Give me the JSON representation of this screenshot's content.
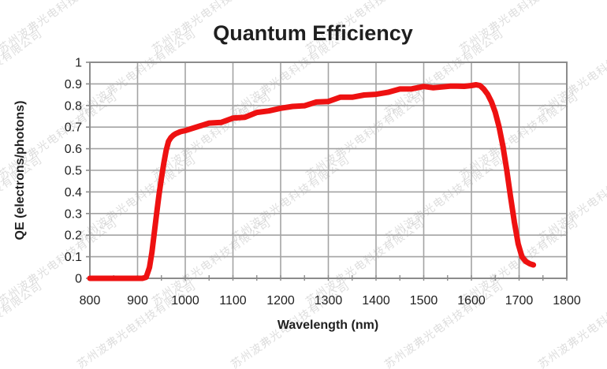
{
  "watermark": {
    "text": "苏州波弗光电科技有限公司",
    "color": "#a8a8a8"
  },
  "colors": {
    "curve": "#ee1111",
    "grid": "#a3a3a3",
    "frame": "#8c8c8c",
    "text": "#1f1f1f"
  },
  "chart_data": {
    "type": "line",
    "title": "Quantum Efficiency",
    "xlabel": "Wavelength (nm)",
    "ylabel": "QE (electrons/photons)",
    "xlim": [
      800,
      1800
    ],
    "ylim": [
      0,
      1
    ],
    "x_ticks": [
      800,
      900,
      1000,
      1100,
      1200,
      1300,
      1400,
      1500,
      1600,
      1700,
      1800
    ],
    "y_ticks": [
      "0",
      "0.1",
      "0.2",
      "0.3",
      "0.4",
      "0.5",
      "0.6",
      "0.7",
      "0.8",
      "0.9",
      "1"
    ],
    "y_tick_values": [
      0,
      0.1,
      0.2,
      0.3,
      0.4,
      0.5,
      0.6,
      0.7,
      0.8,
      0.9,
      1
    ],
    "grid": true,
    "legend": false,
    "series": [
      {
        "name": "QE",
        "points": [
          [
            800,
            0
          ],
          [
            820,
            0
          ],
          [
            840,
            0
          ],
          [
            860,
            0
          ],
          [
            880,
            0
          ],
          [
            900,
            0
          ],
          [
            910,
            0
          ],
          [
            918,
            0.005
          ],
          [
            925,
            0.05
          ],
          [
            930,
            0.12
          ],
          [
            935,
            0.21
          ],
          [
            940,
            0.3
          ],
          [
            945,
            0.39
          ],
          [
            950,
            0.47
          ],
          [
            955,
            0.54
          ],
          [
            960,
            0.6
          ],
          [
            965,
            0.64
          ],
          [
            970,
            0.655
          ],
          [
            975,
            0.663
          ],
          [
            980,
            0.668
          ],
          [
            990,
            0.676
          ],
          [
            1000,
            0.684
          ],
          [
            1025,
            0.7
          ],
          [
            1050,
            0.713
          ],
          [
            1075,
            0.726
          ],
          [
            1100,
            0.74
          ],
          [
            1125,
            0.752
          ],
          [
            1150,
            0.764
          ],
          [
            1175,
            0.774
          ],
          [
            1200,
            0.785
          ],
          [
            1225,
            0.795
          ],
          [
            1250,
            0.805
          ],
          [
            1275,
            0.814
          ],
          [
            1300,
            0.822
          ],
          [
            1325,
            0.831
          ],
          [
            1350,
            0.84
          ],
          [
            1375,
            0.848
          ],
          [
            1400,
            0.855
          ],
          [
            1425,
            0.864
          ],
          [
            1450,
            0.872
          ],
          [
            1475,
            0.878
          ],
          [
            1500,
            0.882
          ],
          [
            1520,
            0.886
          ],
          [
            1540,
            0.89
          ],
          [
            1555,
            0.888
          ],
          [
            1570,
            0.891
          ],
          [
            1585,
            0.893
          ],
          [
            1600,
            0.89
          ],
          [
            1610,
            0.889
          ],
          [
            1618,
            0.885
          ],
          [
            1626,
            0.872
          ],
          [
            1634,
            0.852
          ],
          [
            1642,
            0.82
          ],
          [
            1650,
            0.77
          ],
          [
            1658,
            0.7
          ],
          [
            1666,
            0.61
          ],
          [
            1674,
            0.5
          ],
          [
            1682,
            0.38
          ],
          [
            1690,
            0.26
          ],
          [
            1698,
            0.16
          ],
          [
            1706,
            0.1
          ],
          [
            1714,
            0.078
          ],
          [
            1722,
            0.068
          ],
          [
            1730,
            0.062
          ]
        ]
      }
    ]
  }
}
